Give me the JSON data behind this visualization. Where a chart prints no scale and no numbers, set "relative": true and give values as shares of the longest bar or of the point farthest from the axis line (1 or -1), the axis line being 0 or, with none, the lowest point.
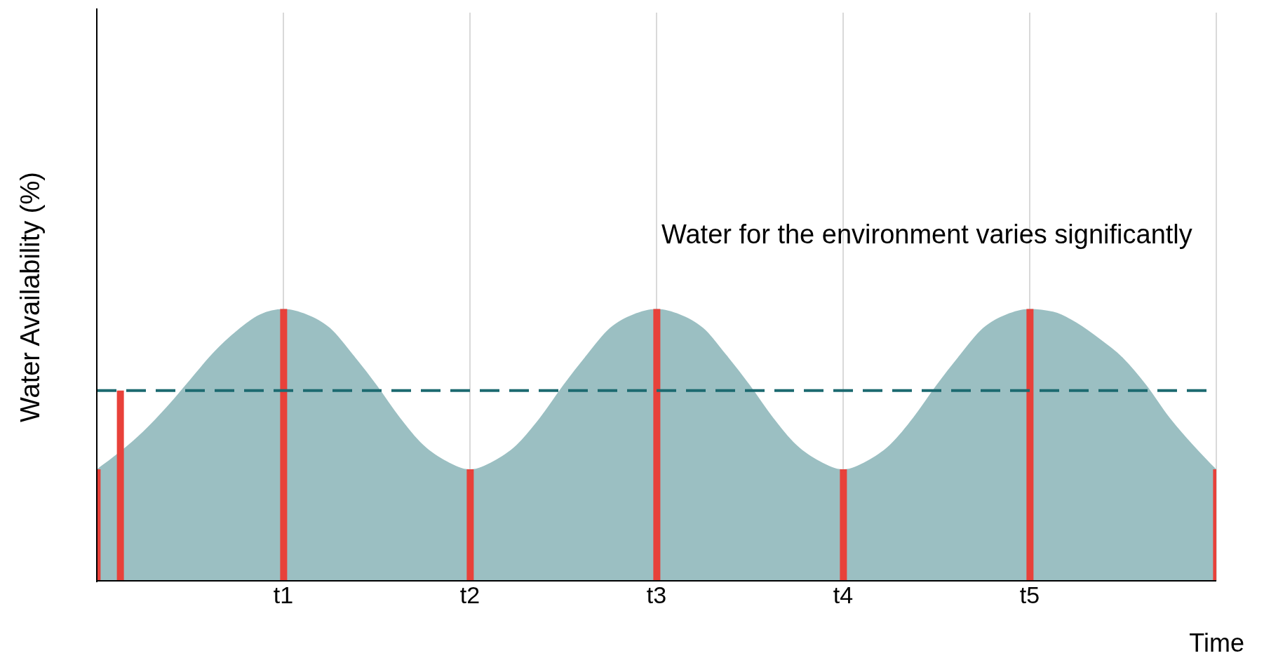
{
  "chart_data": {
    "type": "area",
    "relative": true,
    "xlabel": "Time",
    "ylabel": "Water Availability (%)",
    "annotations": [
      "Water for the environment varies significantly"
    ],
    "categories": [
      null,
      null,
      null,
      null,
      null,
      null,
      null,
      null,
      "t1",
      null,
      null,
      null,
      null,
      null,
      null,
      null,
      "t2",
      null,
      null,
      null,
      null,
      null,
      null,
      null,
      "t3",
      null,
      null,
      null,
      null,
      null,
      null,
      null,
      "t4",
      null,
      null,
      null,
      null,
      null,
      null,
      null,
      "t5",
      null,
      null,
      null,
      null,
      null,
      null,
      null,
      null
    ],
    "grid": "x",
    "legend": false,
    "series": [
      {
        "color": "#9bbfc2",
        "values": [
          0.41,
          null,
          0.55,
          0.64,
          0.74,
          0.84,
          0.92,
          0.98,
          1,
          0.98,
          0.93,
          0.83,
          0.72,
          0.6,
          0.5,
          0.44,
          0.41,
          0.44,
          0.5,
          0.6,
          0.72,
          0.83,
          0.93,
          0.98,
          1,
          0.98,
          0.93,
          0.83,
          0.72,
          0.6,
          0.5,
          0.44,
          0.41,
          0.44,
          0.5,
          0.6,
          0.72,
          0.83,
          0.93,
          0.98,
          1,
          0.99,
          0.95,
          0.89,
          0.82,
          0.72,
          0.6,
          0.5,
          0.41
        ]
      },
      {
        "type": "bar",
        "color": "#e8413a",
        "values": [
          0.41,
          0.7,
          null,
          null,
          null,
          null,
          null,
          null,
          1,
          null,
          null,
          null,
          null,
          null,
          null,
          null,
          0.41,
          null,
          null,
          null,
          null,
          null,
          null,
          null,
          1,
          null,
          null,
          null,
          null,
          null,
          null,
          null,
          0.41,
          null,
          null,
          null,
          null,
          null,
          null,
          null,
          1,
          null,
          null,
          null,
          null,
          null,
          null,
          null,
          0.41
        ]
      }
    ],
    "ref_lines": [
      {
        "axis": "y",
        "value": 0.7,
        "color": "#1c6a70",
        "line_style": "dashed"
      }
    ]
  }
}
